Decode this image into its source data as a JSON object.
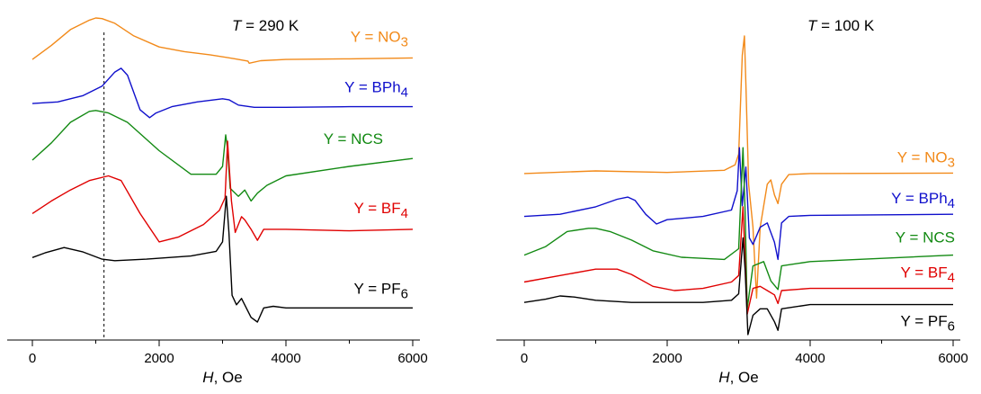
{
  "chart_data": [
    {
      "type": "line",
      "title_prefix": "T",
      "title_rest": " = 290 K",
      "xlabel_italic": "H",
      "xlabel_rest": ", Oe",
      "ylabel": "",
      "xlim": [
        0,
        6000
      ],
      "xticks": [
        "0",
        "2000",
        "4000",
        "6000"
      ],
      "reference_line_x": 1130,
      "series": [
        {
          "name_base": "Y = NO",
          "name_sub": "3",
          "color": "#f28a1a",
          "offset": 7.2,
          "x": [
            0,
            300,
            600,
            900,
            1000,
            1100,
            1300,
            1600,
            2000,
            2400,
            2800,
            3200,
            3400,
            3420,
            3600,
            4000,
            5000,
            6000
          ],
          "y": [
            0,
            0.45,
            0.95,
            1.25,
            1.32,
            1.3,
            1.15,
            0.75,
            0.4,
            0.25,
            0.15,
            0.02,
            -0.05,
            -0.12,
            -0.04,
            0.0,
            0.02,
            0.05
          ]
        },
        {
          "name_base": "Y = BPh",
          "name_sub": "4",
          "color": "#1010cc",
          "offset": 5.8,
          "x": [
            0,
            400,
            800,
            1100,
            1300,
            1400,
            1500,
            1700,
            1850,
            1950,
            2200,
            2600,
            3000,
            3100,
            3250,
            3500,
            4000,
            5000,
            6000
          ],
          "y": [
            0,
            0.05,
            0.25,
            0.55,
            1.0,
            1.12,
            0.9,
            -0.2,
            -0.45,
            -0.3,
            -0.1,
            0.05,
            0.15,
            0.12,
            -0.05,
            -0.12,
            -0.12,
            -0.1,
            -0.1
          ]
        },
        {
          "name_base": "Y = NCS",
          "name_sub": "",
          "color": "#138a13",
          "offset": 4.0,
          "x": [
            0,
            300,
            600,
            900,
            1000,
            1200,
            1500,
            2000,
            2500,
            2900,
            3000,
            3050,
            3080,
            3120,
            3250,
            3350,
            3450,
            3550,
            3700,
            4000,
            5000,
            6000
          ],
          "y": [
            0,
            0.55,
            1.2,
            1.55,
            1.58,
            1.5,
            1.2,
            0.3,
            -0.45,
            -0.45,
            -0.2,
            0.8,
            0.35,
            -0.9,
            -1.15,
            -0.95,
            -1.3,
            -1.05,
            -0.8,
            -0.5,
            -0.2,
            0.05
          ]
        },
        {
          "name_base": "Y = BF",
          "name_sub": "4",
          "color": "#e00000",
          "offset": 2.3,
          "x": [
            0,
            300,
            600,
            900,
            1200,
            1400,
            1700,
            2000,
            2300,
            2700,
            2950,
            3040,
            3080,
            3140,
            3200,
            3300,
            3350,
            3450,
            3550,
            3650,
            4000,
            5000,
            6000
          ],
          "y": [
            0,
            0.4,
            0.75,
            1.05,
            1.2,
            1.05,
            0.0,
            -0.9,
            -0.75,
            -0.35,
            0.1,
            0.5,
            2.3,
            0.4,
            -0.6,
            -0.1,
            -0.2,
            -0.5,
            -0.85,
            -0.5,
            -0.5,
            -0.55,
            -0.5
          ]
        },
        {
          "name_base": "Y = PF",
          "name_sub": "6",
          "color": "#000000",
          "offset": 0.9,
          "x": [
            0,
            200,
            500,
            800,
            1100,
            1300,
            1800,
            2500,
            2900,
            3000,
            3060,
            3100,
            3150,
            3220,
            3300,
            3450,
            3550,
            3650,
            3800,
            4000,
            5000,
            6000
          ],
          "y": [
            0,
            0.15,
            0.32,
            0.18,
            -0.05,
            -0.1,
            -0.05,
            0.05,
            0.2,
            0.5,
            1.95,
            0.8,
            -1.2,
            -1.5,
            -1.3,
            -1.9,
            -2.05,
            -1.6,
            -1.55,
            -1.6,
            -1.6,
            -1.6
          ]
        }
      ]
    },
    {
      "type": "line",
      "title_prefix": "T",
      "title_rest": " = 100 K",
      "xlabel_italic": "H",
      "xlabel_rest": ", Oe",
      "ylabel": "",
      "xlim": [
        0,
        6000
      ],
      "xticks": [
        "0",
        "2000",
        "4000",
        "6000"
      ],
      "series": [
        {
          "name_base": "Y = NO",
          "name_sub": "3",
          "color": "#f28a1a",
          "offset": 7.0,
          "x": [
            0,
            1000,
            2000,
            2800,
            2950,
            3000,
            3050,
            3080,
            3100,
            3140,
            3200,
            3250,
            3300,
            3400,
            3450,
            3500,
            3550,
            3600,
            3700,
            4000,
            6000
          ],
          "y": [
            0,
            0.12,
            0.05,
            0.15,
            0.4,
            0.9,
            5.5,
            6.4,
            4.2,
            -0.5,
            -2.5,
            -5.8,
            -2.5,
            -0.5,
            -0.3,
            -1.0,
            -1.4,
            -0.5,
            -0.05,
            0.0,
            0.02
          ]
        },
        {
          "name_base": "Y = BPh",
          "name_sub": "4",
          "color": "#1010cc",
          "offset": 5.0,
          "x": [
            0,
            500,
            1000,
            1300,
            1450,
            1550,
            1700,
            1850,
            2000,
            2500,
            2900,
            2980,
            3010,
            3050,
            3100,
            3150,
            3200,
            3300,
            3400,
            3500,
            3550,
            3600,
            3700,
            4000,
            6000
          ],
          "y": [
            0,
            0.1,
            0.45,
            0.8,
            0.9,
            0.75,
            0.1,
            -0.35,
            -0.15,
            0.0,
            0.3,
            1.2,
            3.2,
            0.5,
            2.3,
            -1.0,
            -1.3,
            -0.5,
            -0.3,
            -1.2,
            -2.0,
            -0.3,
            0.0,
            0.05,
            0.1
          ]
        },
        {
          "name_base": "Y = NCS",
          "name_sub": "",
          "color": "#138a13",
          "offset": 3.2,
          "x": [
            0,
            300,
            600,
            900,
            1000,
            1200,
            1500,
            1800,
            2200,
            2800,
            3000,
            3060,
            3090,
            3120,
            3200,
            3350,
            3450,
            3550,
            3600,
            4000,
            6000
          ],
          "y": [
            0,
            0.4,
            1.1,
            1.25,
            1.25,
            1.1,
            0.7,
            0.2,
            -0.1,
            -0.2,
            0.3,
            5.0,
            2.0,
            -2.5,
            -0.5,
            -0.3,
            -1.2,
            -1.6,
            -0.5,
            -0.3,
            0.0
          ]
        },
        {
          "name_base": "Y = BF",
          "name_sub": "4",
          "color": "#e00000",
          "offset": 1.95,
          "x": [
            0,
            500,
            1000,
            1300,
            1500,
            1800,
            2100,
            2500,
            2900,
            3000,
            3060,
            3090,
            3120,
            3200,
            3300,
            3400,
            3500,
            3550,
            3600,
            4000,
            6000
          ],
          "y": [
            0,
            0.3,
            0.6,
            0.6,
            0.35,
            -0.2,
            -0.4,
            -0.3,
            0.0,
            0.3,
            3.5,
            1.0,
            -1.5,
            -0.3,
            -0.2,
            -0.4,
            -0.6,
            -1.0,
            -0.4,
            -0.3,
            -0.3
          ]
        },
        {
          "name_base": "Y = PF",
          "name_sub": "6",
          "color": "#000000",
          "offset": 1.0,
          "x": [
            0,
            300,
            500,
            700,
            1000,
            1500,
            2000,
            2500,
            2900,
            3000,
            3060,
            3090,
            3130,
            3200,
            3300,
            3400,
            3500,
            3550,
            3600,
            4000,
            6000
          ],
          "y": [
            0,
            0.15,
            0.3,
            0.25,
            0.1,
            0.0,
            0.0,
            0.0,
            0.1,
            0.4,
            3.0,
            1.5,
            -1.5,
            -0.6,
            -0.3,
            -0.3,
            -0.9,
            -1.3,
            -0.3,
            -0.1,
            -0.1
          ]
        }
      ]
    }
  ]
}
